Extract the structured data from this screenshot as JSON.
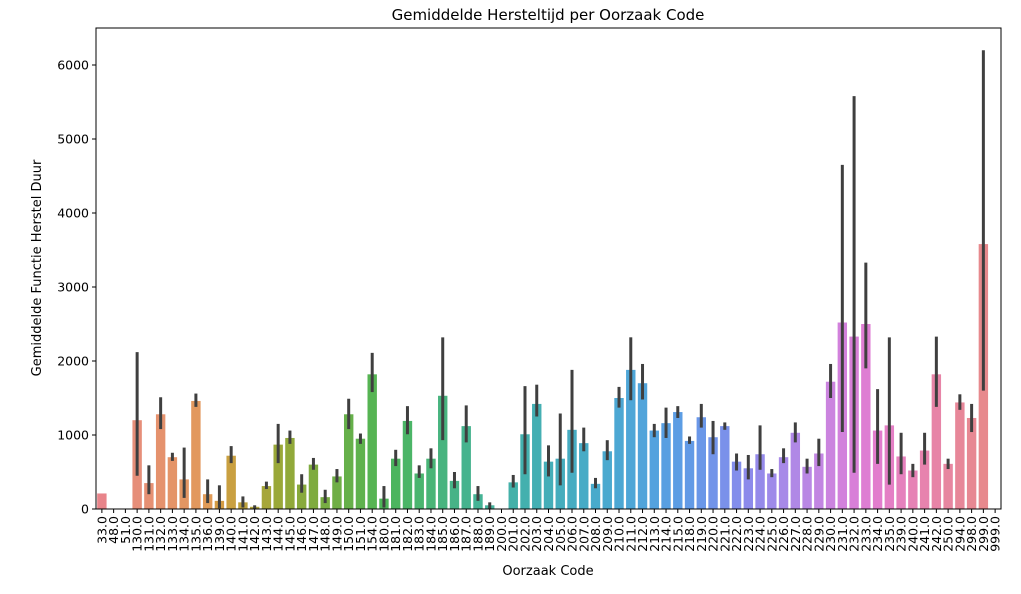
{
  "chart_data": {
    "type": "bar",
    "title": "Gemiddelde Hersteltijd per Oorzaak Code",
    "xlabel": "Oorzaak Code",
    "ylabel": "Gemiddelde Functie Herstel Duur",
    "ylim": [
      0,
      6500
    ],
    "yticks": [
      0,
      1000,
      2000,
      3000,
      4000,
      5000,
      6000
    ],
    "grid": false,
    "legend": "none",
    "categories": [
      "33.0",
      "48.0",
      "51.0",
      "130.0",
      "131.0",
      "132.0",
      "133.0",
      "134.0",
      "135.0",
      "136.0",
      "139.0",
      "140.0",
      "141.0",
      "142.0",
      "143.0",
      "144.0",
      "145.0",
      "146.0",
      "147.0",
      "148.0",
      "149.0",
      "150.0",
      "151.0",
      "154.0",
      "180.0",
      "181.0",
      "182.0",
      "183.0",
      "184.0",
      "185.0",
      "186.0",
      "187.0",
      "188.0",
      "189.0",
      "200.0",
      "201.0",
      "202.0",
      "203.0",
      "204.0",
      "205.0",
      "206.0",
      "207.0",
      "208.0",
      "209.0",
      "210.0",
      "211.0",
      "212.0",
      "213.0",
      "214.0",
      "215.0",
      "218.0",
      "219.0",
      "220.0",
      "221.0",
      "222.0",
      "223.0",
      "224.0",
      "225.0",
      "226.0",
      "227.0",
      "228.0",
      "229.0",
      "230.0",
      "231.0",
      "232.0",
      "233.0",
      "234.0",
      "235.0",
      "239.0",
      "240.0",
      "241.0",
      "242.0",
      "250.0",
      "294.0",
      "298.0",
      "299.0",
      "999.0"
    ],
    "values": [
      210,
      0,
      0,
      1200,
      350,
      1280,
      700,
      400,
      1460,
      200,
      110,
      720,
      90,
      30,
      310,
      870,
      960,
      330,
      600,
      160,
      440,
      1280,
      950,
      1820,
      140,
      680,
      1190,
      480,
      680,
      1530,
      380,
      1120,
      200,
      50,
      0,
      360,
      1010,
      1420,
      640,
      680,
      1070,
      890,
      340,
      780,
      1500,
      1880,
      1700,
      1060,
      1160,
      1310,
      920,
      1240,
      970,
      1120,
      640,
      550,
      740,
      480,
      700,
      1030,
      570,
      750,
      1720,
      2520,
      2330,
      2500,
      1060,
      1130,
      710,
      520,
      790,
      1820,
      610,
      1440,
      1230,
      3580,
      0
    ],
    "error_low": [
      210,
      0,
      0,
      450,
      200,
      1080,
      650,
      150,
      1380,
      80,
      10,
      620,
      20,
      0,
      270,
      620,
      880,
      220,
      530,
      80,
      360,
      1080,
      880,
      1580,
      20,
      580,
      1010,
      420,
      550,
      930,
      280,
      900,
      110,
      0,
      0,
      290,
      470,
      1250,
      440,
      320,
      490,
      780,
      280,
      660,
      1370,
      1470,
      1480,
      970,
      960,
      1230,
      880,
      1100,
      740,
      1070,
      520,
      400,
      530,
      430,
      620,
      900,
      480,
      580,
      1500,
      1040,
      490,
      1900,
      610,
      330,
      470,
      430,
      600,
      1380,
      540,
      1340,
      1040,
      1600,
      0
    ],
    "error_high": [
      210,
      0,
      0,
      2120,
      590,
      1510,
      760,
      830,
      1560,
      400,
      320,
      850,
      170,
      50,
      370,
      1150,
      1060,
      470,
      690,
      260,
      540,
      1490,
      1020,
      2110,
      310,
      800,
      1390,
      590,
      820,
      2320,
      500,
      1400,
      310,
      90,
      0,
      460,
      1660,
      1680,
      860,
      1290,
      1880,
      1100,
      420,
      930,
      1650,
      2320,
      1960,
      1150,
      1370,
      1390,
      980,
      1420,
      1190,
      1170,
      750,
      730,
      1130,
      540,
      820,
      1170,
      680,
      950,
      1960,
      4650,
      5580,
      3330,
      1620,
      2320,
      1030,
      610,
      1030,
      2330,
      680,
      1550,
      1420,
      6200,
      0
    ],
    "colors": [
      "#e8848a",
      "#e98785",
      "#e88a7e",
      "#e68e79",
      "#e69073",
      "#e5926d",
      "#e49468",
      "#e39663",
      "#e2985e",
      "#e09b57",
      "#d49c44",
      "#c9a041",
      "#bda23e",
      "#b2a43c",
      "#a6a63a",
      "#9aa838",
      "#91a93a",
      "#88aa3c",
      "#7fab3f",
      "#77ad42",
      "#6fae46",
      "#66b04a",
      "#5fb24e",
      "#56b453",
      "#4db558",
      "#4cb55f",
      "#4bb567",
      "#4ab56f",
      "#49b577",
      "#48b47f",
      "#47b387",
      "#46b38e",
      "#45b395",
      "#44b39c",
      "#44b2a3",
      "#44b1a9",
      "#43b0ae",
      "#44afb3",
      "#44aeb8",
      "#45adbd",
      "#46acc2",
      "#47abc6",
      "#48aacb",
      "#4aa9cf",
      "#4ca7d3",
      "#4ea6d7",
      "#51a4da",
      "#54a2de",
      "#589fe1",
      "#5c9de4",
      "#629ae6",
      "#6a97e8",
      "#7294e9",
      "#7a91ea",
      "#838eeb",
      "#8c8aeb",
      "#958aea",
      "#9e8ae9",
      "#a789e8",
      "#b088e6",
      "#b987e4",
      "#c286e2",
      "#cb84df",
      "#d281dc",
      "#d87fd8",
      "#de7ed3",
      "#e27dcd",
      "#e47fc5",
      "#e581bd",
      "#e682b5",
      "#e783ae",
      "#e784a7",
      "#e786a0",
      "#e78799",
      "#e78893",
      "#e7898d",
      "#e78a88"
    ]
  }
}
